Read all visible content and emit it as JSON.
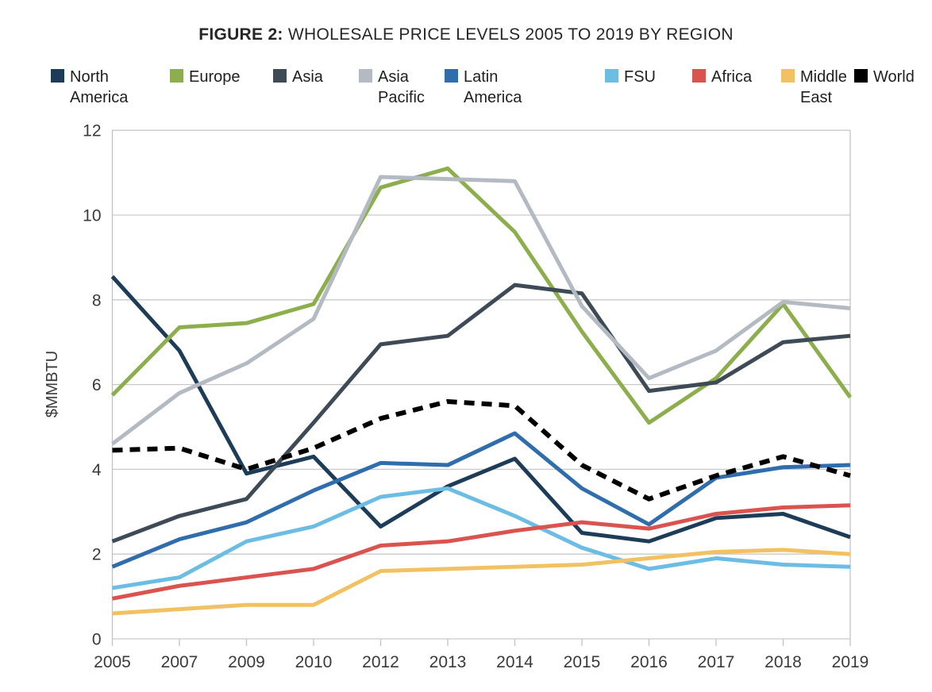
{
  "chart_data": {
    "type": "line",
    "title": "FIGURE 2: WHOLESALE PRICE LEVELS 2005 TO 2019 BY REGION",
    "title_prefix": "FIGURE 2:",
    "title_rest": " WHOLESALE PRICE LEVELS 2005 TO 2019 BY REGION",
    "xlabel": "",
    "ylabel": "$MMBTU",
    "ylim": [
      0,
      12
    ],
    "yticks": [
      0,
      2,
      4,
      6,
      8,
      10,
      12
    ],
    "grid": true,
    "legend_position": "top",
    "categories": [
      "2005",
      "2007",
      "2009",
      "2010",
      "2012",
      "2013",
      "2014",
      "2015",
      "2016",
      "2017",
      "2018",
      "2019"
    ],
    "series": [
      {
        "name": "North America",
        "label_lines": "North\nAmerica",
        "color": "#1d3c58",
        "dashed": false,
        "values": [
          8.55,
          6.8,
          3.9,
          4.3,
          2.65,
          3.6,
          4.25,
          2.5,
          2.3,
          2.85,
          2.95,
          2.4
        ]
      },
      {
        "name": "Europe",
        "label_lines": "Europe",
        "color": "#8cae4c",
        "dashed": false,
        "values": [
          5.75,
          7.35,
          7.45,
          7.9,
          10.65,
          11.1,
          9.6,
          7.25,
          5.1,
          6.15,
          7.9,
          5.7
        ]
      },
      {
        "name": "Asia",
        "label_lines": "Asia",
        "color": "#3e4b57",
        "dashed": false,
        "values": [
          2.3,
          2.9,
          3.3,
          5.1,
          6.95,
          7.15,
          8.35,
          8.15,
          5.85,
          6.05,
          7.0,
          7.15
        ]
      },
      {
        "name": "Asia Pacific",
        "label_lines": "Asia\nPacific",
        "color": "#b3bac2",
        "dashed": false,
        "values": [
          4.6,
          5.8,
          6.5,
          7.55,
          10.9,
          10.85,
          10.8,
          7.85,
          6.15,
          6.8,
          7.95,
          7.8
        ]
      },
      {
        "name": "Latin America",
        "label_lines": "Latin\nAmerica",
        "color": "#2f6dad",
        "dashed": false,
        "values": [
          1.7,
          2.35,
          2.75,
          3.5,
          4.15,
          4.1,
          4.85,
          3.55,
          2.7,
          3.8,
          4.05,
          4.1
        ]
      },
      {
        "name": "FSU",
        "label_lines": "FSU",
        "color": "#6cbde4",
        "dashed": false,
        "values": [
          1.2,
          1.45,
          2.3,
          2.65,
          3.35,
          3.55,
          2.9,
          2.15,
          1.65,
          1.9,
          1.75,
          1.7
        ]
      },
      {
        "name": "Africa",
        "label_lines": "Africa",
        "color": "#d9534f",
        "dashed": false,
        "values": [
          0.95,
          1.25,
          1.45,
          1.65,
          2.2,
          2.3,
          2.55,
          2.75,
          2.6,
          2.95,
          3.1,
          3.15
        ]
      },
      {
        "name": "Middle East",
        "label_lines": "Middle\nEast",
        "color": "#f2c161",
        "dashed": false,
        "values": [
          0.6,
          0.7,
          0.8,
          0.8,
          1.6,
          1.65,
          1.7,
          1.75,
          1.9,
          2.05,
          2.1,
          2.0
        ]
      },
      {
        "name": "World",
        "label_lines": "World",
        "color": "#000000",
        "dashed": true,
        "values": [
          4.45,
          4.5,
          4.0,
          4.5,
          5.2,
          5.6,
          5.5,
          4.1,
          3.3,
          3.85,
          4.3,
          3.85
        ]
      }
    ],
    "colors": {
      "grid": "#c9c9c9",
      "axis": "#c2c2c2",
      "tick_text": "#3a3a3a",
      "title_text": "#262626"
    }
  }
}
